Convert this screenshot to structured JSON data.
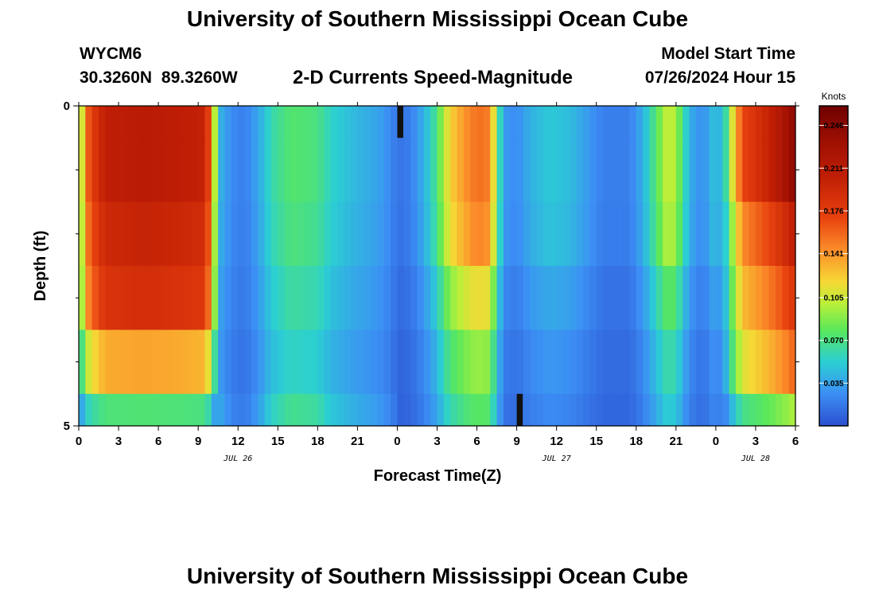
{
  "title": "University of Southern Mississippi Ocean Cube",
  "footer_title": "University of Southern Mississippi Ocean Cube",
  "station": "WYCM6",
  "coordinates": "30.3260N  89.3260W",
  "subtitle": "2-D Currents Speed-Magnitude",
  "model_start_label": "Model Start Time",
  "model_start_value": "07/26/2024 Hour 15",
  "chart_data": {
    "type": "heatmap",
    "title": "2-D Currents Speed-Magnitude",
    "xlabel": "Forecast Time(Z)",
    "ylabel": "Depth (ft)",
    "x_tick_labels": [
      "0",
      "3",
      "6",
      "9",
      "12",
      "15",
      "18",
      "21",
      "0",
      "3",
      "6",
      "9",
      "12",
      "15",
      "18",
      "21",
      "0",
      "3",
      "6"
    ],
    "x_range_hours": [
      0,
      54
    ],
    "date_labels": [
      {
        "label": "JUL 26",
        "hour": 12
      },
      {
        "label": "JUL 27",
        "hour": 36
      },
      {
        "label": "JUL 28",
        "hour": 51
      }
    ],
    "y_tick_labels": [
      "0",
      "5"
    ],
    "ylim": [
      0,
      5
    ],
    "colorbar": {
      "units": "Knots",
      "tick_labels": [
        "0.246",
        "0.211",
        "0.176",
        "0.141",
        "0.105",
        "0.070",
        "0.035"
      ],
      "tick_values": [
        0.246,
        0.211,
        0.176,
        0.141,
        0.105,
        0.07,
        0.035
      ],
      "range": [
        0.0,
        0.262
      ]
    },
    "depth_bands": [
      0,
      0.5,
      1.5,
      2.5,
      3.5,
      4.5,
      5.0
    ],
    "speed_profile": [
      [
        0.0,
        0.09
      ],
      [
        0.4,
        0.12
      ],
      [
        0.8,
        0.17
      ],
      [
        2.0,
        0.205
      ],
      [
        5.0,
        0.21
      ],
      [
        8.0,
        0.205
      ],
      [
        9.5,
        0.2
      ],
      [
        10.0,
        0.15
      ],
      [
        10.3,
        0.09
      ],
      [
        10.7,
        0.04
      ],
      [
        11.5,
        0.025
      ],
      [
        12.5,
        0.02
      ],
      [
        13.5,
        0.035
      ],
      [
        14.5,
        0.06
      ],
      [
        16.0,
        0.075
      ],
      [
        18.0,
        0.07
      ],
      [
        19.0,
        0.055
      ],
      [
        20.5,
        0.045
      ],
      [
        21.5,
        0.04
      ],
      [
        22.5,
        0.035
      ],
      [
        23.5,
        0.025
      ],
      [
        24.0,
        0.015
      ],
      [
        25.0,
        0.02
      ],
      [
        26.0,
        0.04
      ],
      [
        27.0,
        0.07
      ],
      [
        27.5,
        0.1
      ],
      [
        28.0,
        0.12
      ],
      [
        29.0,
        0.14
      ],
      [
        30.0,
        0.155
      ],
      [
        30.8,
        0.15
      ],
      [
        31.3,
        0.11
      ],
      [
        31.7,
        0.06
      ],
      [
        32.2,
        0.03
      ],
      [
        33.0,
        0.025
      ],
      [
        34.0,
        0.04
      ],
      [
        35.5,
        0.05
      ],
      [
        37.0,
        0.045
      ],
      [
        38.5,
        0.03
      ],
      [
        39.5,
        0.02
      ],
      [
        41.5,
        0.02
      ],
      [
        42.5,
        0.04
      ],
      [
        43.5,
        0.075
      ],
      [
        44.5,
        0.11
      ],
      [
        45.3,
        0.08
      ],
      [
        46.0,
        0.04
      ],
      [
        47.0,
        0.025
      ],
      [
        48.0,
        0.05
      ],
      [
        48.5,
        0.035
      ],
      [
        49.0,
        0.09
      ],
      [
        50.0,
        0.17
      ],
      [
        52.0,
        0.2
      ],
      [
        53.0,
        0.22
      ],
      [
        54.0,
        0.245
      ]
    ],
    "depth_factors": [
      [
        1.0,
        1.0,
        1.0,
        1.0
      ],
      [
        1.0,
        1.0,
        1.0,
        1.0
      ],
      [
        0.95,
        0.95,
        0.95,
        0.85
      ],
      [
        0.9,
        0.85,
        0.75,
        0.75
      ],
      [
        0.65,
        0.75,
        0.6,
        0.65
      ],
      [
        0.35,
        0.9,
        0.5,
        0.4
      ]
    ],
    "depth_factor_hour_breaks": [
      10.5,
      24.0,
      48.5
    ],
    "dark_markers": [
      {
        "hour_start": 24.0,
        "hour_end": 24.45,
        "depth_top": 0.0,
        "depth_bottom": 0.5
      },
      {
        "hour_start": 33.0,
        "hour_end": 33.45,
        "depth_top": 4.5,
        "depth_bottom": 5.0
      }
    ]
  }
}
